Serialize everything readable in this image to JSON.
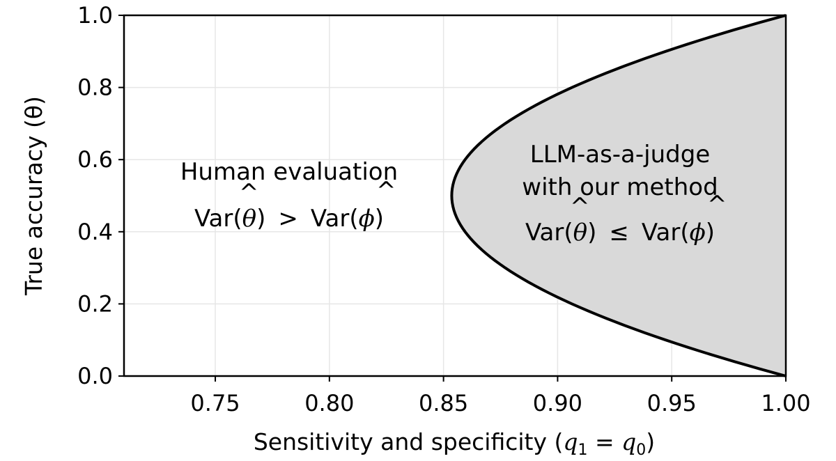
{
  "chart_data": {
    "type": "area",
    "title": "",
    "xlabel": "Sensitivity and specificity (q₁ = q₀)",
    "xlabel_parts": {
      "prefix": "Sensitivity and specificity (",
      "q1": "q",
      "sub1": "1",
      "eq": " = ",
      "q0": "q",
      "sub0": "0",
      "suffix": ")"
    },
    "ylabel": "True accuracy (θ)",
    "xlim": [
      0.71,
      1.0
    ],
    "ylim": [
      0.0,
      1.0
    ],
    "xticks": [
      0.75,
      0.8,
      0.85,
      0.9,
      0.95,
      1.0
    ],
    "xtick_labels": [
      "0.75",
      "0.80",
      "0.85",
      "0.90",
      "0.95",
      "1.00"
    ],
    "yticks": [
      0.0,
      0.2,
      0.4,
      0.6,
      0.8,
      1.0
    ],
    "ytick_labels": [
      "0.0",
      "0.2",
      "0.4",
      "0.6",
      "0.8",
      "1.0"
    ],
    "grid": true,
    "boundary": {
      "name": "Var(θ̂) = Var(φ̂) boundary",
      "formula": "q = 1 - (1 - 0.8536) * 4 * θ * (1 - θ), shaded region to the right",
      "vertex": {
        "x": 0.8536,
        "y": 0.5
      },
      "endpoints": [
        {
          "x": 1.0,
          "y": 0.0
        },
        {
          "x": 1.0,
          "y": 1.0
        }
      ],
      "points": [
        {
          "y": 0.0,
          "x": 1.0
        },
        {
          "y": 0.1,
          "x": 0.9473
        },
        {
          "y": 0.2,
          "x": 0.9063
        },
        {
          "y": 0.3,
          "x": 0.877
        },
        {
          "y": 0.4,
          "x": 0.8595
        },
        {
          "y": 0.5,
          "x": 0.8536
        },
        {
          "y": 0.6,
          "x": 0.8595
        },
        {
          "y": 0.7,
          "x": 0.877
        },
        {
          "y": 0.8,
          "x": 0.9063
        },
        {
          "y": 0.9,
          "x": 0.9473
        },
        {
          "y": 1.0,
          "x": 1.0
        }
      ],
      "fill_color": "#d9d9d9",
      "line_color": "#000000"
    },
    "annotations": {
      "left_region": {
        "line1": "Human evaluation",
        "var_left": "Var(",
        "theta_hat": "θ",
        "close_paren": ")",
        "relation": ">",
        "var_right": "Var(",
        "phi_hat": "ϕ",
        "close_paren2": ")",
        "hat": "^"
      },
      "right_region": {
        "line1": "LLM-as-a-judge",
        "line2": "with our method",
        "var_left": "Var(",
        "theta_hat": "θ",
        "close_paren": ")",
        "relation": "≤",
        "var_right": "Var(",
        "phi_hat": "ϕ",
        "close_paren2": ")",
        "hat": "^"
      }
    },
    "colors": {
      "grid": "#e6e6e6",
      "axes": "#000000",
      "shade": "#d9d9d9"
    }
  }
}
